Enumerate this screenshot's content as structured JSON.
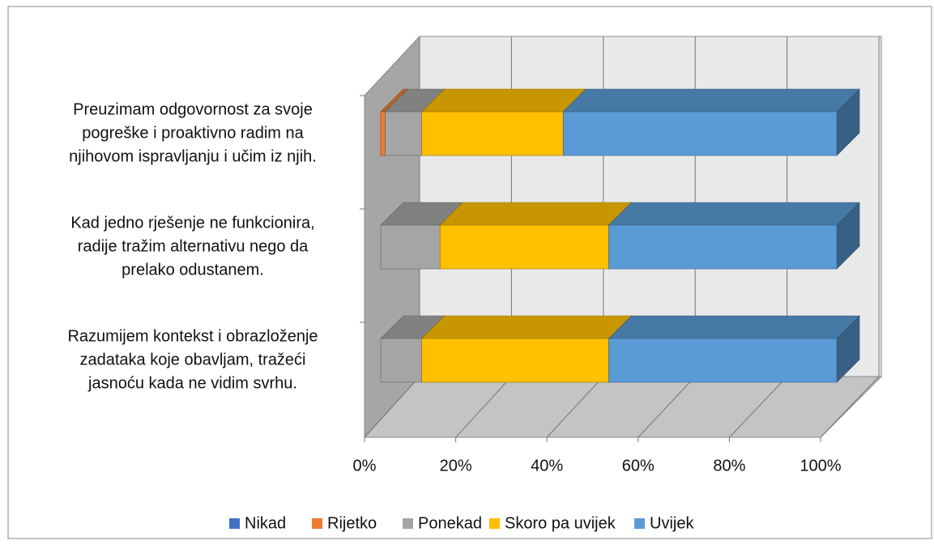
{
  "chart_data": {
    "type": "bar3d_stacked_horizontal",
    "categories": [
      "Preuzimam odgovornost za svoje\npogreške i proaktivno radim na\nnjihovom ispravljanju i učim iz njih.",
      "Kad jedno rješenje ne funkcionira,\nradije tražim alternativu nego da\nprelako odustanem.",
      "Razumijem kontekst i obrazloženje\nzadataka koje obavljam, tražeći\njasnoću kada ne vidim svrhu."
    ],
    "series": [
      {
        "name": "Nikad",
        "color": "#4472c4",
        "values": [
          0,
          0,
          0
        ]
      },
      {
        "name": "Rijetko",
        "color": "#ed7d31",
        "values": [
          1,
          0,
          0
        ]
      },
      {
        "name": "Ponekad",
        "color": "#a5a5a5",
        "values": [
          8,
          13,
          9
        ]
      },
      {
        "name": "Skoro pa uvijek",
        "color": "#ffc000",
        "values": [
          31,
          37,
          41
        ]
      },
      {
        "name": "Uvijek",
        "color": "#5b9bd5",
        "values": [
          60,
          50,
          50
        ]
      }
    ],
    "xlim": [
      0,
      100
    ],
    "xticks": [
      {
        "value": 0,
        "label": "0%"
      },
      {
        "value": 20,
        "label": "20%"
      },
      {
        "value": 40,
        "label": "40%"
      },
      {
        "value": 60,
        "label": "60%"
      },
      {
        "value": 80,
        "label": "80%"
      },
      {
        "value": 100,
        "label": "100%"
      }
    ],
    "grid": true,
    "legend": "bottom"
  }
}
